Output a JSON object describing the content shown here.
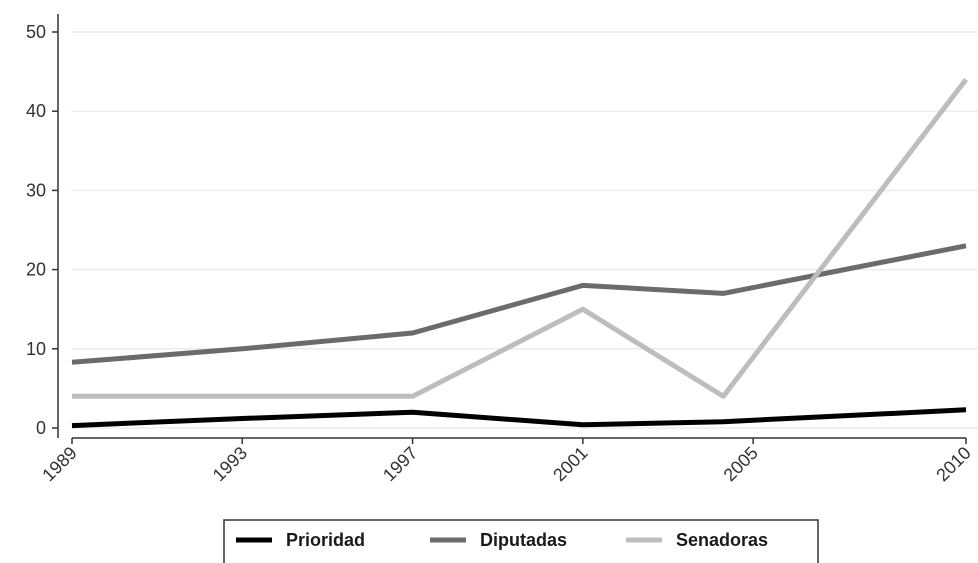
{
  "chart_data": {
    "type": "line",
    "categories": [
      "1989",
      "1993",
      "1997",
      "2001",
      "2005",
      "2010"
    ],
    "x": [
      1989,
      1993,
      1997,
      2001,
      2005,
      2010
    ],
    "ylim": [
      0,
      50
    ],
    "yticks": [
      0,
      10,
      20,
      30,
      40,
      50
    ],
    "grid": "horizontal",
    "legend_position": "bottom",
    "series": [
      {
        "name": "Prioridad",
        "color": "#000000",
        "points": [
          [
            1989,
            0.3
          ],
          [
            1993,
            1.2
          ],
          [
            1997,
            2.0
          ],
          [
            2001,
            0.4
          ],
          [
            2004.3,
            0.8
          ],
          [
            2010,
            2.3
          ]
        ]
      },
      {
        "name": "Diputadas",
        "color": "#6b6b6b",
        "points": [
          [
            1989,
            8.3
          ],
          [
            1993,
            10.0
          ],
          [
            1997,
            12.0
          ],
          [
            2001,
            18.0
          ],
          [
            2004.3,
            17.0
          ],
          [
            2010,
            23.0
          ]
        ]
      },
      {
        "name": "Senadoras",
        "color": "#bdbdbd",
        "points": [
          [
            1989,
            4.0
          ],
          [
            1993,
            4.0
          ],
          [
            1997,
            4.0
          ],
          [
            2001,
            15.0
          ],
          [
            2004.3,
            4.0
          ],
          [
            2010,
            44.0
          ]
        ]
      }
    ]
  }
}
